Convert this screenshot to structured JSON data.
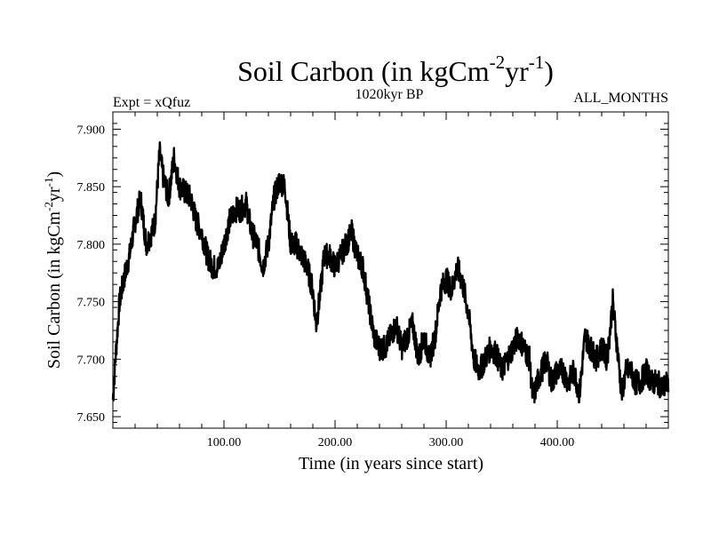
{
  "chart_data": {
    "type": "line",
    "title": "Soil Carbon (in kgCm-2yr-1)",
    "title_parts": {
      "main": "Soil Carbon (in kgCm",
      "sup1": "-2",
      "mid": "yr",
      "sup2": "-1",
      "end": ")"
    },
    "subtitle_left": "Expt = xQfuz",
    "subtitle_center": "1020kyr BP",
    "subtitle_right": "ALL_MONTHS",
    "xlabel": "Time (in years since start)",
    "ylabel": "Soil Carbon (in kgCm-2yr-1)",
    "ylabel_parts": {
      "main": "Soil Carbon (in kgCm",
      "sup1": "-2",
      "mid": "yr",
      "sup2": "-1",
      "end": ")"
    },
    "xlim": [
      0,
      500
    ],
    "ylim": [
      7.64,
      7.915
    ],
    "x_ticks": [
      100,
      200,
      300,
      400
    ],
    "x_tick_labels": [
      "100.00",
      "200.00",
      "300.00",
      "400.00"
    ],
    "y_ticks": [
      7.65,
      7.7,
      7.75,
      7.8,
      7.85,
      7.9
    ],
    "y_tick_labels": [
      "7.650",
      "7.700",
      "7.750",
      "7.800",
      "7.850",
      "7.900"
    ],
    "grid": false,
    "line_color": "#000000",
    "series": [
      {
        "x": [
          0,
          3,
          6,
          10,
          15,
          20,
          25,
          30,
          35,
          38,
          42,
          45,
          50,
          55,
          60,
          65,
          70,
          75,
          80,
          85,
          90,
          95,
          100,
          105,
          110,
          115,
          120,
          125,
          130,
          135,
          140,
          145,
          150,
          155,
          160,
          165,
          170,
          175,
          180,
          183,
          187,
          190,
          195,
          200,
          205,
          210,
          215,
          220,
          225,
          230,
          235,
          240,
          245,
          250,
          255,
          260,
          265,
          270,
          275,
          280,
          285,
          290,
          295,
          300,
          305,
          310,
          315,
          320,
          325,
          330,
          335,
          340,
          345,
          350,
          355,
          360,
          365,
          370,
          375,
          378,
          382,
          386,
          390,
          395,
          400,
          405,
          410,
          415,
          420,
          425,
          430,
          435,
          440,
          445,
          450,
          453,
          458,
          462,
          466,
          470,
          475,
          480,
          485,
          490,
          495,
          500
        ],
        "y": [
          7.665,
          7.71,
          7.75,
          7.77,
          7.79,
          7.82,
          7.84,
          7.8,
          7.81,
          7.82,
          7.88,
          7.86,
          7.84,
          7.875,
          7.85,
          7.845,
          7.84,
          7.82,
          7.81,
          7.79,
          7.78,
          7.78,
          7.8,
          7.82,
          7.83,
          7.83,
          7.835,
          7.81,
          7.8,
          7.78,
          7.8,
          7.84,
          7.855,
          7.85,
          7.8,
          7.8,
          7.79,
          7.78,
          7.76,
          7.73,
          7.76,
          7.79,
          7.79,
          7.78,
          7.79,
          7.8,
          7.81,
          7.79,
          7.78,
          7.75,
          7.72,
          7.71,
          7.71,
          7.72,
          7.73,
          7.71,
          7.72,
          7.73,
          7.7,
          7.72,
          7.7,
          7.72,
          7.76,
          7.77,
          7.76,
          7.78,
          7.765,
          7.74,
          7.7,
          7.69,
          7.7,
          7.71,
          7.705,
          7.69,
          7.7,
          7.71,
          7.72,
          7.71,
          7.7,
          7.665,
          7.68,
          7.69,
          7.7,
          7.68,
          7.69,
          7.69,
          7.68,
          7.69,
          7.67,
          7.72,
          7.71,
          7.7,
          7.71,
          7.7,
          7.75,
          7.72,
          7.67,
          7.69,
          7.69,
          7.68,
          7.68,
          7.69,
          7.68,
          7.68,
          7.675,
          7.68
        ]
      }
    ]
  }
}
